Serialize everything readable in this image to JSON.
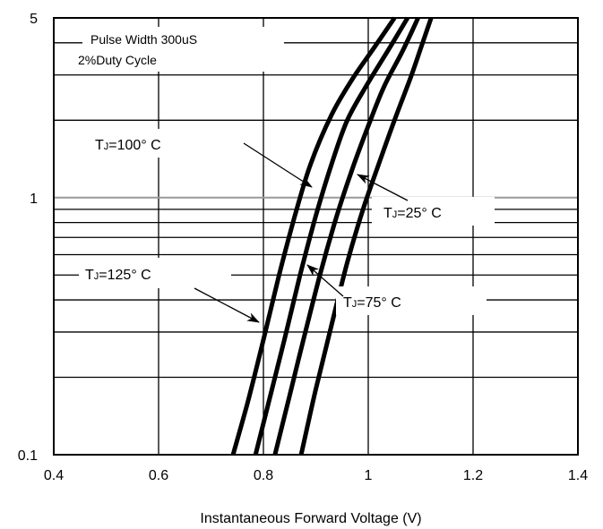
{
  "chart_data": {
    "type": "line",
    "title": "",
    "xlabel": "Instantaneous Forward Voltage (V)",
    "ylabel": "",
    "x_scale": "linear",
    "y_scale": "log",
    "xlim": [
      0.4,
      1.4
    ],
    "ylim": [
      0.1,
      5
    ],
    "x_ticks": [
      "0.4",
      "0.6",
      "0.8",
      "1",
      "1.2",
      "1.4"
    ],
    "y_ticks": [
      "0.1",
      "1",
      "5"
    ],
    "grid": true,
    "legend": "none",
    "note_line1": "Pulse Width 300uS",
    "note_line2": "2%Duty Cycle",
    "series": [
      {
        "name": "TJ=125° C",
        "label_prefix": "T",
        "label_sub": "J",
        "label_rest": "=125° C",
        "x": [
          0.742,
          0.77,
          0.8,
          0.83,
          0.86,
          0.89,
          0.93,
          0.97,
          1.01,
          1.05
        ],
        "y": [
          0.1,
          0.16,
          0.28,
          0.5,
          0.85,
          1.35,
          2.1,
          2.9,
          3.8,
          5.0
        ]
      },
      {
        "name": "TJ=100° C",
        "label_prefix": "T",
        "label_sub": "J",
        "label_rest": "=100° C",
        "x": [
          0.785,
          0.81,
          0.84,
          0.87,
          0.9,
          0.93,
          0.96,
          1.0,
          1.04,
          1.075
        ],
        "y": [
          0.1,
          0.16,
          0.28,
          0.5,
          0.85,
          1.35,
          2.0,
          2.8,
          3.8,
          5.0
        ]
      },
      {
        "name": "TJ=75° C",
        "label_prefix": "T",
        "label_sub": "J",
        "label_rest": "=75° C",
        "x": [
          0.822,
          0.85,
          0.88,
          0.91,
          0.94,
          0.97,
          1.0,
          1.03,
          1.065,
          1.095
        ],
        "y": [
          0.1,
          0.17,
          0.3,
          0.52,
          0.85,
          1.3,
          1.9,
          2.7,
          3.7,
          5.0
        ]
      },
      {
        "name": "TJ=25° C",
        "label_prefix": "T",
        "label_sub": "J",
        "label_rest": "=25° C",
        "x": [
          0.872,
          0.9,
          0.93,
          0.96,
          0.99,
          1.02,
          1.05,
          1.08,
          1.1,
          1.12
        ],
        "y": [
          0.1,
          0.18,
          0.32,
          0.56,
          0.9,
          1.35,
          2.0,
          2.9,
          3.8,
          5.0
        ]
      }
    ]
  }
}
